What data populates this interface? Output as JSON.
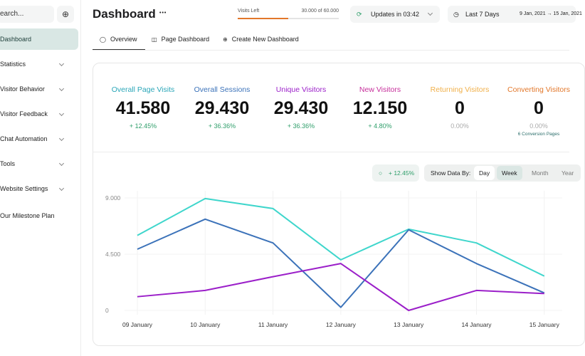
{
  "sidebar": {
    "search": "earch...",
    "items": [
      "Dashboard",
      "Statistics",
      "Visitor Behavior",
      "Visitor Feedback",
      "Chat Automation",
      "Tools",
      "Website Settings",
      "Our Milestone Plan"
    ]
  },
  "header": {
    "title": "Dashboard",
    "menu": "•••",
    "visits_caption": "Visits Left",
    "visits": {
      "value": 30000,
      "max": 60000,
      "label": "30.000 of 60.000"
    },
    "updates": "Updates in 03:42",
    "range": "Last 7 Days",
    "dates": "9 Jan, 2021 → 15 Jan, 2021"
  },
  "tabs": [
    "Overview",
    "Page Dashboard",
    "Create New Dashboard"
  ],
  "stats": [
    {
      "label": "Overall Page Visits",
      "color": "#2aa6b8",
      "value": "41.580",
      "change": "+ 12.45%"
    },
    {
      "label": "Overall Sessions",
      "color": "#3b72b9",
      "value": "29.430",
      "change": "+ 36.36%"
    },
    {
      "label": "Unique Visitors",
      "color": "#9b1fc9",
      "value": "29.430",
      "change": "+ 36.36%"
    },
    {
      "label": "New Visitors",
      "color": "#c62f9b",
      "value": "12.150",
      "change": "+ 4.80%"
    },
    {
      "label": "Returning Visitors",
      "color": "#f0b04a",
      "value": "0",
      "change": "0.00%"
    },
    {
      "label": "Converting Visitors",
      "color": "#e2772a",
      "value": "0",
      "change": "0.00%",
      "note": "6 Conversion Pages"
    }
  ],
  "controls": {
    "change": "+ 12.45%",
    "show_by": "Show Data By:",
    "options": [
      "Day",
      "Week",
      "Month",
      "Year"
    ],
    "active": "Week"
  },
  "chart_data": {
    "type": "line",
    "categories": [
      "09 January",
      "10 January",
      "11 January",
      "12 January",
      "13 January",
      "14 January",
      "15 January"
    ],
    "series": [
      {
        "color": "#3fd6cc",
        "values": [
          6000,
          8950,
          8150,
          4050,
          6500,
          5400,
          2750
        ]
      },
      {
        "color": "#3b72b9",
        "values": [
          4900,
          7300,
          5400,
          250,
          6450,
          3750,
          1400
        ]
      },
      {
        "color": "#9b1fc9",
        "values": [
          1100,
          1600,
          2700,
          3750,
          0,
          1600,
          1350
        ]
      }
    ],
    "ylim": [
      0,
      9000
    ],
    "yticks": [
      0,
      {
        "value": 4500,
        "label": "4.500"
      },
      {
        "value": 9000,
        "label": "9.000"
      }
    ],
    "grid": true
  }
}
